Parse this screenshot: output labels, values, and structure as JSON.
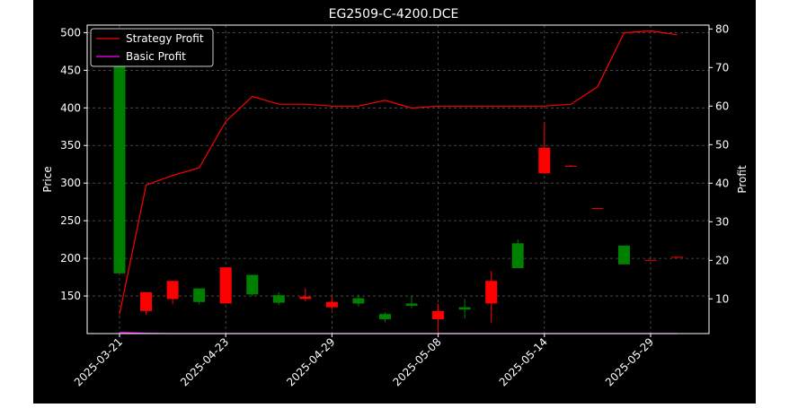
{
  "chart_data": {
    "type": "candlestick",
    "title": "EG2509-C-4200.DCE",
    "xlabel": "",
    "ylabel_left": "Price",
    "ylabel_right": "Profit",
    "ylim_left": [
      100,
      510
    ],
    "ylim_right": [
      1,
      81
    ],
    "yticks_left": [
      150,
      200,
      250,
      300,
      350,
      400,
      450,
      500
    ],
    "yticks_right": [
      10,
      20,
      30,
      40,
      50,
      60,
      70,
      80
    ],
    "x_tick_labels": [
      "2025-03-21",
      "2025-04-23",
      "2025-04-29",
      "2025-05-08",
      "2025-05-14",
      "2025-05-29"
    ],
    "x_tick_indices": [
      0,
      4,
      8,
      12,
      16,
      20
    ],
    "grid": true,
    "legend_position": "top-left",
    "colors": {
      "background": "#000000",
      "up": "#008000",
      "down": "#ff0000",
      "strategy_line": "#ff0000",
      "basic_line": "#ff00ff",
      "text": "#ffffff",
      "grid": "#555555"
    },
    "candles": [
      {
        "open": 180,
        "close": 505,
        "high": 505,
        "low": 180
      },
      {
        "open": 155,
        "close": 130,
        "high": 155,
        "low": 125
      },
      {
        "open": 170,
        "close": 146,
        "high": 170,
        "low": 139
      },
      {
        "open": 142,
        "close": 160,
        "high": 160,
        "low": 139
      },
      {
        "open": 188,
        "close": 140,
        "high": 188,
        "low": 140
      },
      {
        "open": 152,
        "close": 178,
        "high": 178,
        "low": 150
      },
      {
        "open": 141,
        "close": 151,
        "high": 155,
        "low": 138
      },
      {
        "open": 149,
        "close": 146,
        "high": 160,
        "low": 143
      },
      {
        "open": 142,
        "close": 135,
        "high": 150,
        "low": 132
      },
      {
        "open": 140,
        "close": 147,
        "high": 152,
        "low": 136
      },
      {
        "open": 119,
        "close": 126,
        "high": 128,
        "low": 115
      },
      {
        "open": 137,
        "close": 140,
        "high": 150,
        "low": 134
      },
      {
        "open": 130,
        "close": 119,
        "high": 140,
        "low": 100
      },
      {
        "open": 132,
        "close": 135,
        "high": 146,
        "low": 120
      },
      {
        "open": 170,
        "close": 140,
        "high": 183,
        "low": 114
      },
      {
        "open": 187,
        "close": 220,
        "high": 225,
        "low": 187
      },
      {
        "open": 347,
        "close": 313,
        "high": 381,
        "low": 313
      },
      {
        "open": 323,
        "close": 322,
        "high": 324,
        "low": 322
      },
      {
        "open": 267,
        "close": 266,
        "high": 267,
        "low": 266
      },
      {
        "open": 192,
        "close": 217,
        "high": 217,
        "low": 192
      },
      {
        "open": 198,
        "close": 197,
        "high": 198,
        "low": 197
      },
      {
        "open": 202,
        "close": 201,
        "high": 202,
        "low": 201
      }
    ],
    "series": [
      {
        "name": "Strategy Profit",
        "axis": "right",
        "values": [
          6,
          39.5,
          42,
          44,
          56,
          62.5,
          60.5,
          60.5,
          60,
          60,
          61.5,
          59.5,
          60,
          60,
          60,
          60,
          60,
          60.5,
          65,
          79,
          79.5,
          78.5
        ]
      },
      {
        "name": "Basic Profit",
        "axis": "right",
        "values": [
          1.3,
          1.1,
          1,
          1,
          1,
          1,
          1,
          1,
          1,
          1,
          1,
          1,
          1,
          1,
          1,
          1,
          1,
          1,
          1,
          1,
          1,
          1
        ]
      }
    ]
  }
}
